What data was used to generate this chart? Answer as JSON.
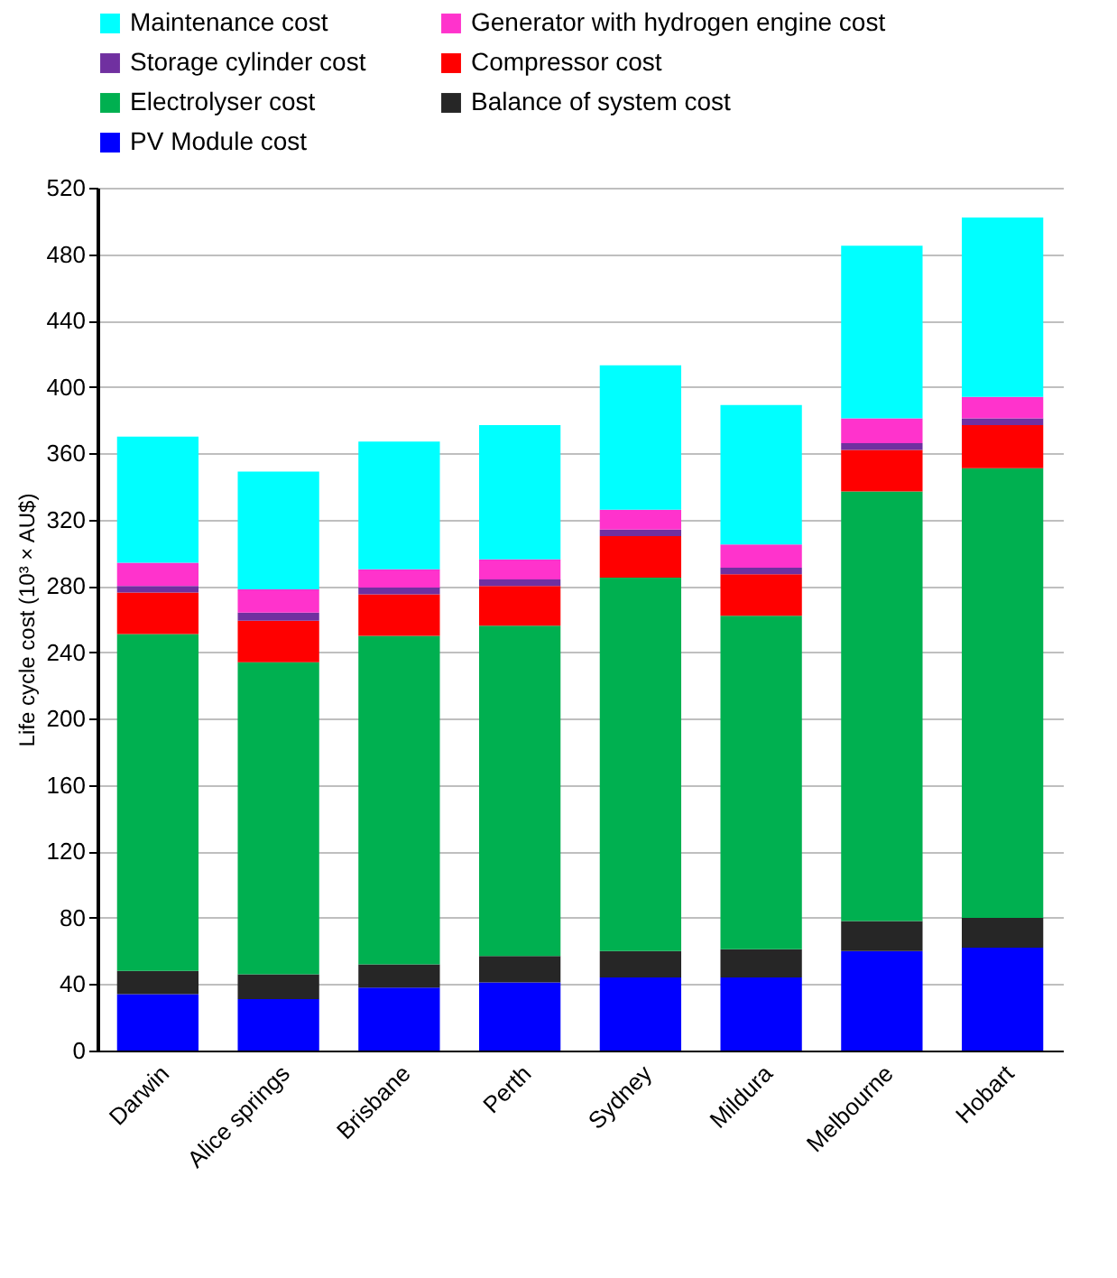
{
  "chart_data": {
    "type": "bar",
    "stacked": true,
    "ylabel": "Life cycle cost (10³ × AU$)",
    "categories": [
      "Darwin",
      "Alice springs",
      "Brisbane",
      "Perth",
      "Sydney",
      "Mildura",
      "Melbourne",
      "Hobart"
    ],
    "series": [
      {
        "name": "PV Module cost",
        "color": "#0000ff",
        "values": [
          34,
          31,
          38,
          41,
          44,
          44,
          60,
          62
        ]
      },
      {
        "name": "Balance of system cost",
        "color": "#262626",
        "values": [
          14,
          15,
          14,
          16,
          16,
          17,
          18,
          18
        ]
      },
      {
        "name": "Electrolyser cost",
        "color": "#00b050",
        "values": [
          203,
          188,
          198,
          199,
          225,
          201,
          259,
          271
        ]
      },
      {
        "name": "Compressor cost",
        "color": "#ff0000",
        "values": [
          25,
          25,
          25,
          24,
          25,
          25,
          25,
          26
        ]
      },
      {
        "name": "Storage cylinder cost",
        "color": "#7030a0",
        "values": [
          4,
          5,
          4,
          4,
          4,
          4,
          4,
          4
        ]
      },
      {
        "name": "Generator with hydrogen engine cost",
        "color": "#ff33cc",
        "values": [
          14,
          14,
          11,
          12,
          12,
          14,
          15,
          13
        ]
      },
      {
        "name": "Maintenance cost",
        "color": "#00ffff",
        "values": [
          76,
          71,
          77,
          81,
          87,
          84,
          104,
          108
        ]
      }
    ],
    "ylim": [
      0,
      520
    ],
    "yticks": [
      0,
      40,
      80,
      120,
      160,
      200,
      240,
      280,
      320,
      360,
      400,
      440,
      480,
      520
    ],
    "grid": "y",
    "legend": "top"
  }
}
